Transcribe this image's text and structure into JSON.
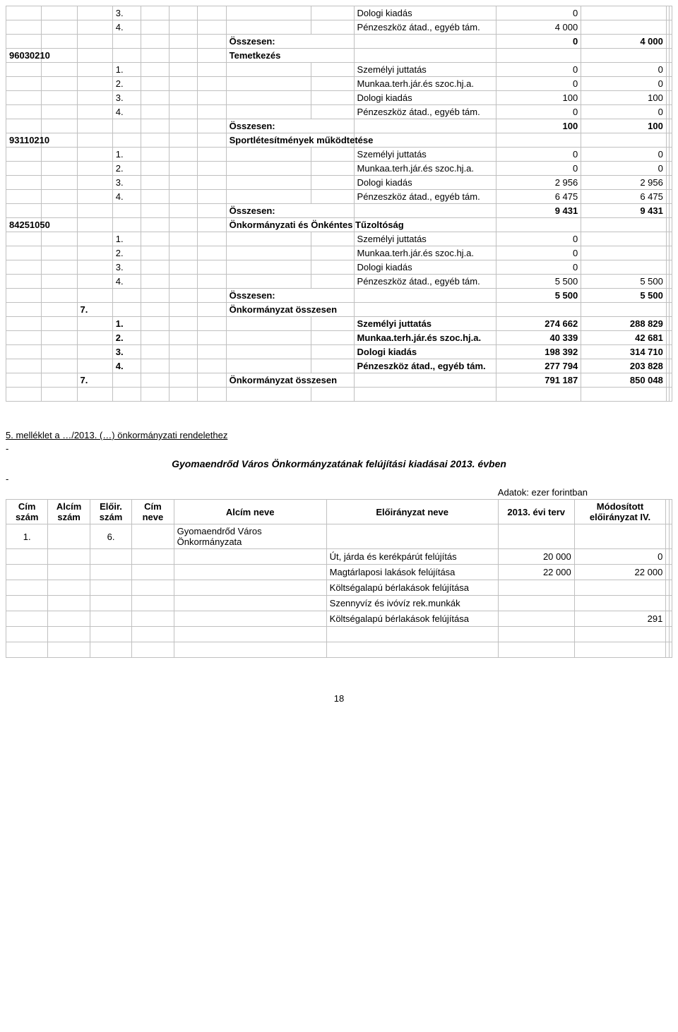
{
  "table1": {
    "cols": [
      50,
      50,
      50,
      40,
      40,
      40,
      40,
      120,
      60,
      200,
      120,
      120,
      4,
      4
    ],
    "rows": [
      {
        "c4": "3.",
        "c10": "Dologi kiadás",
        "c11": "0"
      },
      {
        "c4": "4.",
        "c10": "Pénzeszköz átad., egyéb tám.",
        "c11": "4 000"
      },
      {
        "bold": true,
        "c8": "Összesen:",
        "c11": "0",
        "c12": "4 000"
      },
      {
        "bold": true,
        "c1": "96030210",
        "c8": "Temetkezés"
      },
      {
        "c4": "1.",
        "c10": "Személyi juttatás",
        "c11": "0",
        "c12": "0"
      },
      {
        "c4": "2.",
        "c10": "Munkaa.terh.jár.és szoc.hj.a.",
        "c11": "0",
        "c12": "0"
      },
      {
        "c4": "3.",
        "c10": "Dologi kiadás",
        "c11": "100",
        "c12": "100"
      },
      {
        "c4": "4.",
        "c10": "Pénzeszköz átad., egyéb tám.",
        "c11": "0",
        "c12": "0"
      },
      {
        "bold": true,
        "c8": "Összesen:",
        "c11": "100",
        "c12": "100"
      },
      {
        "bold": true,
        "c1": "93110210",
        "c8": "Sportlétesítmények működtetése"
      },
      {
        "c4": "1.",
        "c10": "Személyi juttatás",
        "c11": "0",
        "c12": "0"
      },
      {
        "c4": "2.",
        "c10": "Munkaa.terh.jár.és szoc.hj.a.",
        "c11": "0",
        "c12": "0"
      },
      {
        "c4": "3.",
        "c10": "Dologi kiadás",
        "c11": "2 956",
        "c12": "2 956"
      },
      {
        "c4": "4.",
        "c10": "Pénzeszköz átad., egyéb tám.",
        "c11": "6 475",
        "c12": "6 475"
      },
      {
        "bold": true,
        "c8": "Összesen:",
        "c11": "9 431",
        "c12": "9 431"
      },
      {
        "bold": true,
        "c1": "84251050",
        "c8": "Önkormányzati és Önkéntes Tűzoltóság"
      },
      {
        "c4": "1.",
        "c10": "Személyi juttatás",
        "c11": "0"
      },
      {
        "c4": "2.",
        "c10": "Munkaa.terh.jár.és szoc.hj.a.",
        "c11": "0"
      },
      {
        "c4": "3.",
        "c10": "Dologi kiadás",
        "c11": "0"
      },
      {
        "c4": "4.",
        "c10": "Pénzeszköz átad., egyéb tám.",
        "c11": "5 500",
        "c12": "5 500"
      },
      {
        "bold": true,
        "c8": "Összesen:",
        "c11": "5 500",
        "c12": "5 500"
      },
      {
        "bold": true,
        "c3": "7.",
        "c8": "Önkormányzat összesen"
      },
      {
        "bold": true,
        "c4": "1.",
        "c10": "Személyi juttatás",
        "c11": "274 662",
        "c12": "288 829"
      },
      {
        "bold": true,
        "c4": "2.",
        "c10": "Munkaa.terh.jár.és szoc.hj.a.",
        "c11": "40 339",
        "c12": "42 681"
      },
      {
        "bold": true,
        "c4": "3.",
        "c10": "Dologi kiadás",
        "c11": "198 392",
        "c12": "314 710"
      },
      {
        "bold": true,
        "c4": "4.",
        "c10": "Pénzeszköz átad., egyéb tám.",
        "c11": "277 794",
        "c12": "203 828"
      },
      {
        "bold": true,
        "c3": "7.",
        "c8": "Önkormányzat összesen",
        "c11": "791 187",
        "c12": "850 048"
      },
      {
        "blank": true
      }
    ]
  },
  "attachment": {
    "line": "5. melléklet a …/2013. (…) önkormányzati rendelethez",
    "subtitle": "Gyomaendrőd Város Önkormányzatának felújítási kiadásai 2013. évben",
    "units": "Adatok: ezer forintban"
  },
  "table2": {
    "cols": [
      55,
      55,
      55,
      55,
      200,
      225,
      100,
      120,
      4,
      4
    ],
    "headers": [
      "Cím szám",
      "Alcím szám",
      "Előir. szám",
      "Cím neve",
      "Alcím neve",
      "Előirányzat neve",
      "2013. évi terv",
      "Módosított előirányzat IV."
    ],
    "rows": [
      {
        "c1": "1.",
        "c3": "6.",
        "c5": "Gyomaendrőd Város Önkormányzata"
      },
      {
        "c6": "Út, járda és kerékpárút felújítás",
        "c7": "20 000",
        "c8": "0"
      },
      {
        "c6": "Magtárlaposi lakások felújítása",
        "c7": "22 000",
        "c8": "22 000"
      },
      {
        "c6": "Költségalapú bérlakások felújítása"
      },
      {
        "c6": "Szennyvíz és ivóvíz rek.munkák"
      },
      {
        "c6": "Költségalapú bérlakások felújítása",
        "c8": "291"
      },
      {
        "blank": true
      },
      {
        "blank": true
      }
    ]
  },
  "pageNumber": "18",
  "colors": {
    "border": "#c0c0c0",
    "text": "#000000",
    "background": "#ffffff"
  }
}
